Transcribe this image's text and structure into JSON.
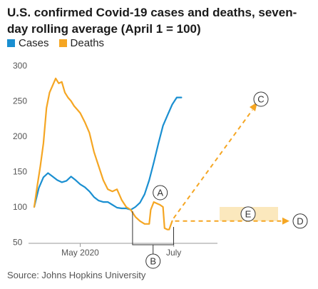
{
  "chart_data": {
    "type": "line",
    "title": "U.S. confirmed Covid-19 cases and deaths, seven-day rolling average (April 1 = 100)",
    "xlabel": "",
    "ylabel": "",
    "ylim": [
      55,
      300
    ],
    "yticks": [
      300,
      250,
      200,
      150,
      100,
      50
    ],
    "xticks": [
      {
        "label": "May 2020",
        "day": 30
      },
      {
        "label": "July",
        "day": 91
      }
    ],
    "grid": false,
    "legend": "top-left",
    "series": [
      {
        "name": "Cases",
        "color": "#1a8fd1",
        "x": [
          0,
          3,
          6,
          9,
          12,
          15,
          18,
          21,
          24,
          27,
          30,
          33,
          36,
          39,
          42,
          45,
          48,
          51,
          54,
          57,
          60,
          63,
          66,
          69,
          72,
          75,
          78,
          81,
          84,
          87,
          90,
          93,
          96
        ],
        "values": [
          100,
          127,
          142,
          148,
          143,
          138,
          135,
          137,
          143,
          138,
          132,
          128,
          122,
          114,
          109,
          107,
          107,
          103,
          99,
          98,
          98,
          96,
          100,
          106,
          118,
          138,
          163,
          190,
          215,
          230,
          245,
          255,
          255
        ]
      },
      {
        "name": "Deaths",
        "color": "#f5a623",
        "x": [
          0,
          2,
          4,
          6,
          8,
          10,
          12,
          14,
          16,
          18,
          20,
          22,
          24,
          26,
          28,
          30,
          33,
          36,
          39,
          42,
          45,
          48,
          51,
          54,
          57,
          60,
          63,
          66,
          69,
          72,
          75,
          76,
          78,
          80,
          82,
          84,
          85,
          87,
          88,
          90
        ],
        "values": [
          100,
          130,
          158,
          190,
          240,
          262,
          272,
          282,
          275,
          277,
          262,
          255,
          250,
          243,
          238,
          233,
          220,
          205,
          178,
          158,
          138,
          125,
          122,
          125,
          110,
          100,
          96,
          86,
          80,
          76,
          76,
          96,
          107,
          105,
          103,
          100,
          70,
          68,
          68,
          80
        ]
      }
    ],
    "annotations": [
      {
        "label": "A",
        "target_x": 78,
        "target_y": 107
      },
      {
        "label": "B",
        "x_range": [
          66,
          90
        ]
      },
      {
        "label": "C",
        "direction": "up"
      },
      {
        "label": "D",
        "direction": "right"
      },
      {
        "label": "E",
        "y_range": [
          80,
          100
        ]
      }
    ],
    "source": "Source: Johns Hopkins University"
  }
}
